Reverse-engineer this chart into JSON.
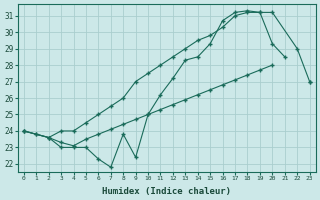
{
  "xlabel": "Humidex (Indice chaleur)",
  "background_color": "#cce8e8",
  "grid_color": "#aacece",
  "line_color": "#1a6b5a",
  "xlim": [
    -0.5,
    23.5
  ],
  "ylim": [
    21.5,
    31.7
  ],
  "xticks": [
    0,
    1,
    2,
    3,
    4,
    5,
    6,
    7,
    8,
    9,
    10,
    11,
    12,
    13,
    14,
    15,
    16,
    17,
    18,
    19,
    20,
    21,
    22,
    23
  ],
  "yticks": [
    22,
    23,
    24,
    25,
    26,
    27,
    28,
    29,
    30,
    31
  ],
  "line1_x": [
    0,
    1,
    2,
    3,
    4,
    5,
    6,
    7,
    8,
    9,
    10,
    11,
    12,
    13,
    14,
    15,
    16,
    17,
    18,
    19,
    20,
    21,
    22,
    23
  ],
  "line1_y": [
    24.0,
    23.8,
    23.6,
    23.3,
    23.1,
    23.5,
    23.8,
    24.1,
    24.4,
    24.7,
    25.0,
    25.3,
    25.6,
    25.9,
    26.2,
    26.5,
    26.8,
    27.1,
    27.4,
    27.7,
    28.0,
    null,
    null,
    27.0
  ],
  "line2_x": [
    0,
    1,
    2,
    3,
    4,
    5,
    6,
    7,
    8,
    9,
    10,
    11,
    12,
    13,
    14,
    15,
    16,
    17,
    18,
    19,
    20,
    21,
    22,
    23
  ],
  "line2_y": [
    24.0,
    23.8,
    23.6,
    23.0,
    23.0,
    23.0,
    22.3,
    21.8,
    23.8,
    22.4,
    25.0,
    26.2,
    27.2,
    28.3,
    28.5,
    29.3,
    30.7,
    31.2,
    31.3,
    31.2,
    29.3,
    28.5,
    null,
    null
  ],
  "line3_x": [
    0,
    2,
    3,
    4,
    5,
    6,
    7,
    8,
    9,
    10,
    11,
    12,
    13,
    14,
    15,
    16,
    17,
    18,
    19,
    20,
    22,
    23
  ],
  "line3_y": [
    24.0,
    23.6,
    24.0,
    24.0,
    24.5,
    25.0,
    25.5,
    26.0,
    27.0,
    27.5,
    28.0,
    28.5,
    29.0,
    29.5,
    29.8,
    30.3,
    31.0,
    31.2,
    31.2,
    31.2,
    29.0,
    27.0
  ]
}
